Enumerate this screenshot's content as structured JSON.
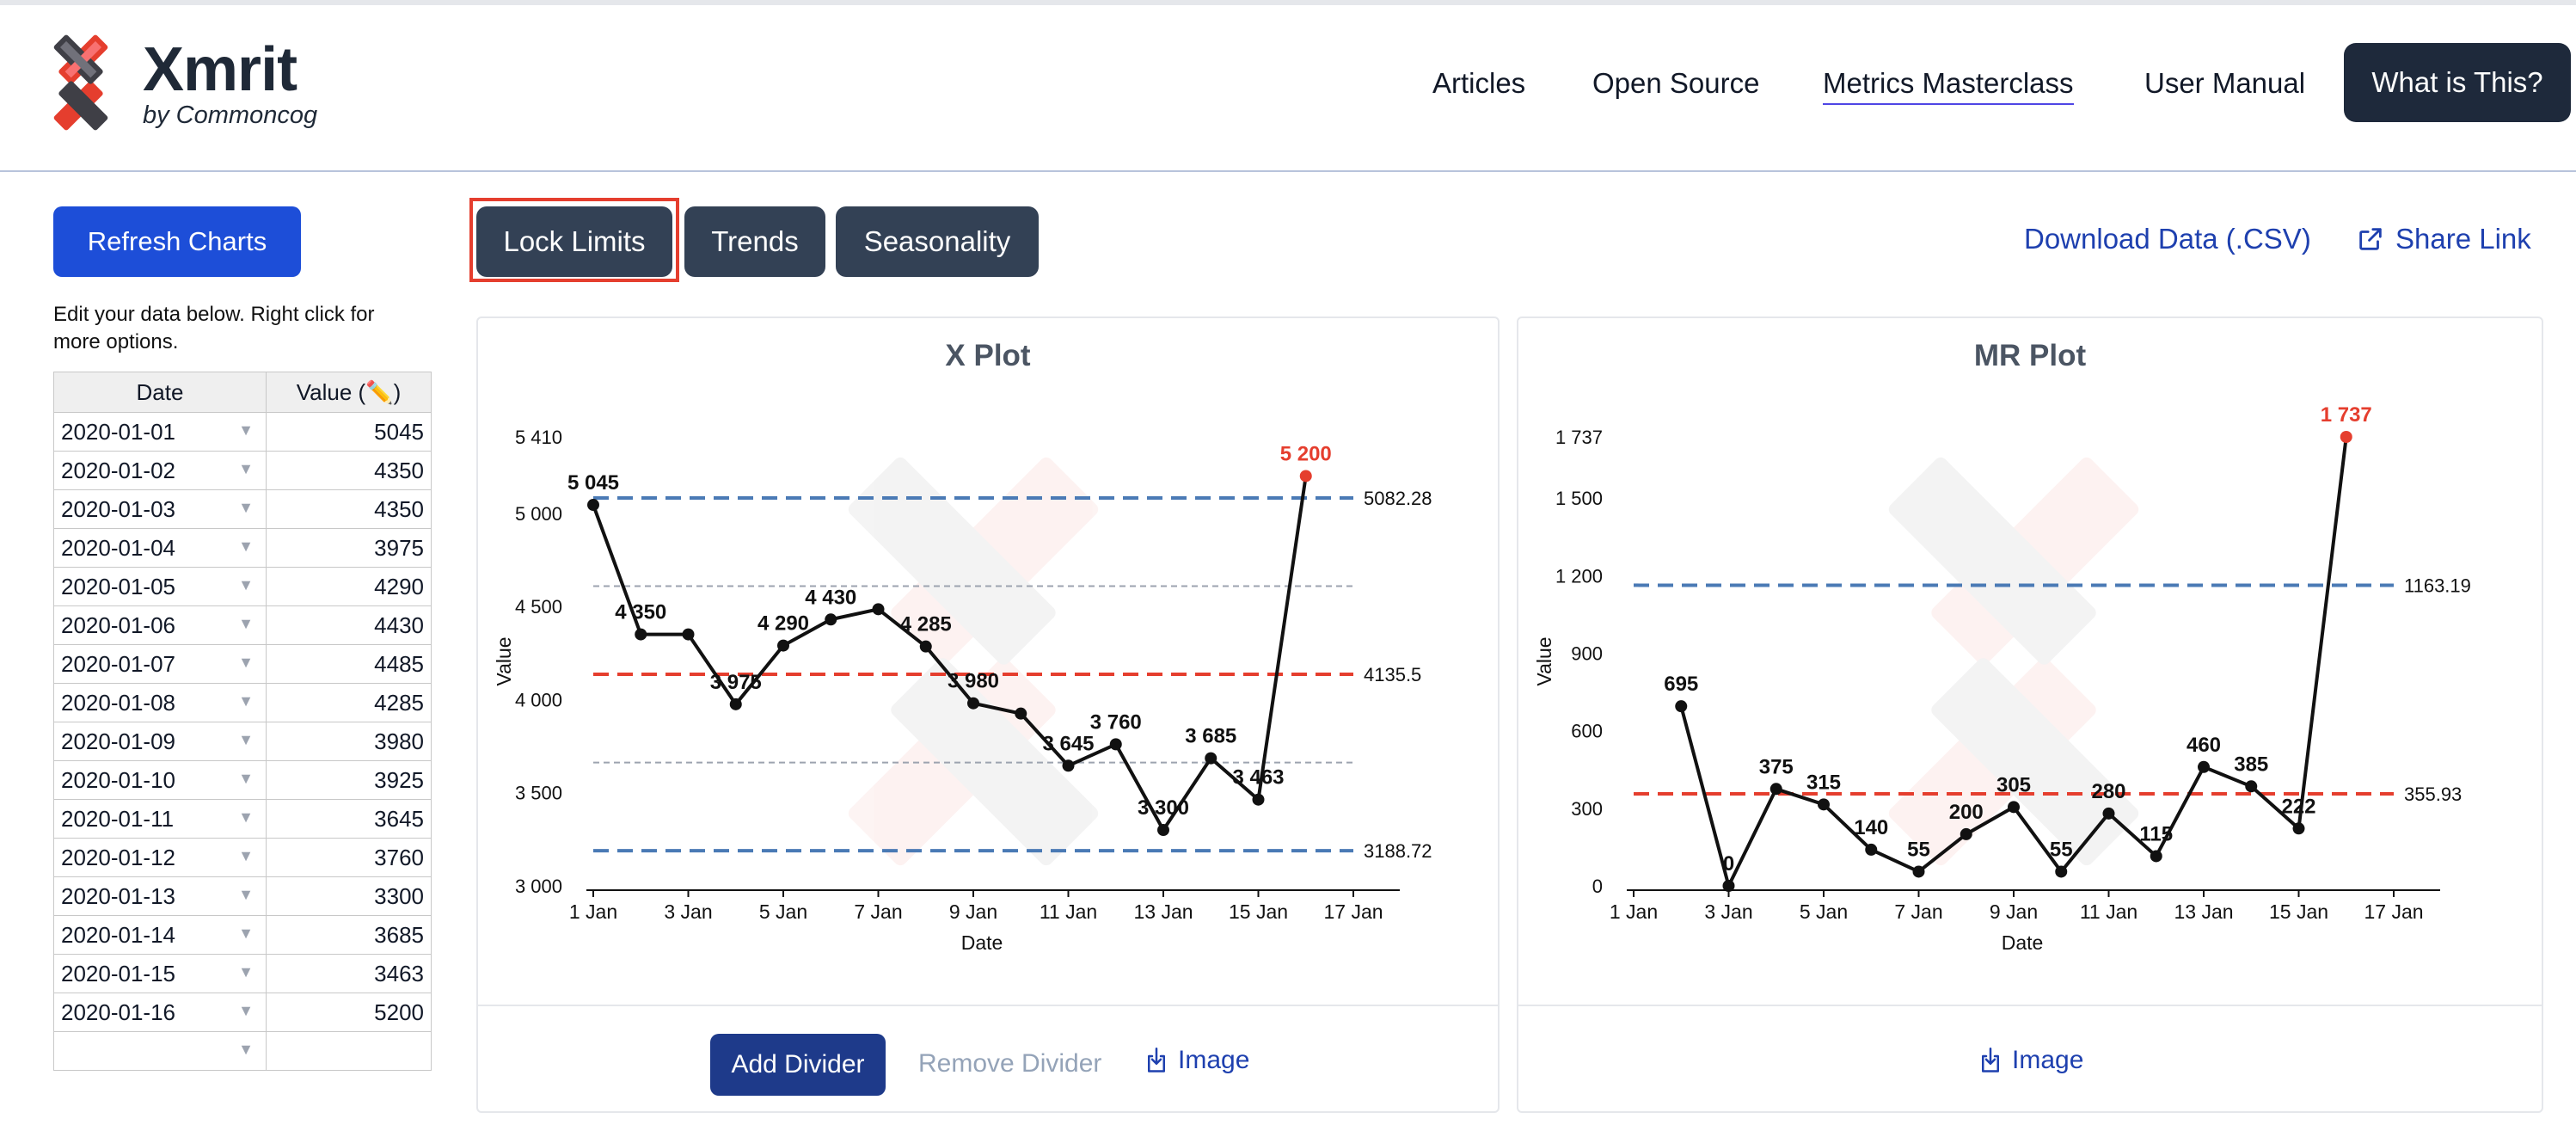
{
  "header": {
    "brand": "Xmrit",
    "brand_sub": "by Commoncog",
    "nav": [
      "Articles",
      "Open Source",
      "Metrics Masterclass",
      "User Manual"
    ],
    "cta": "What is This?"
  },
  "sidebar": {
    "refresh_label": "Refresh Charts",
    "note": "Edit your data below. Right click for more options.",
    "columns": [
      "Date",
      "Value (✏️)"
    ],
    "rows": [
      [
        "2020-01-01",
        "5045"
      ],
      [
        "2020-01-02",
        "4350"
      ],
      [
        "2020-01-03",
        "4350"
      ],
      [
        "2020-01-04",
        "3975"
      ],
      [
        "2020-01-05",
        "4290"
      ],
      [
        "2020-01-06",
        "4430"
      ],
      [
        "2020-01-07",
        "4485"
      ],
      [
        "2020-01-08",
        "4285"
      ],
      [
        "2020-01-09",
        "3980"
      ],
      [
        "2020-01-10",
        "3925"
      ],
      [
        "2020-01-11",
        "3645"
      ],
      [
        "2020-01-12",
        "3760"
      ],
      [
        "2020-01-13",
        "3300"
      ],
      [
        "2020-01-14",
        "3685"
      ],
      [
        "2020-01-15",
        "3463"
      ],
      [
        "2020-01-16",
        "5200"
      ]
    ]
  },
  "toolbar": {
    "lock_limits": "Lock Limits",
    "trends": "Trends",
    "seasonality": "Seasonality",
    "download": "Download Data (.CSV)",
    "share": "Share Link"
  },
  "x_panel": {
    "add_divider": "Add Divider",
    "remove_divider": "Remove Divider",
    "image": "Image"
  },
  "mr_panel": {
    "image": "Image"
  },
  "colors": {
    "primary": "#1d4ed8",
    "dark": "#334155",
    "limit_red": "#e53e2e",
    "limit_blue": "#4a7ab5"
  },
  "chart_data": [
    {
      "type": "line",
      "title": "X Plot",
      "xlabel": "Date",
      "ylabel": "Value",
      "x": [
        "2020-01-01",
        "2020-01-02",
        "2020-01-03",
        "2020-01-04",
        "2020-01-05",
        "2020-01-06",
        "2020-01-07",
        "2020-01-08",
        "2020-01-09",
        "2020-01-10",
        "2020-01-11",
        "2020-01-12",
        "2020-01-13",
        "2020-01-14",
        "2020-01-15",
        "2020-01-16"
      ],
      "values": [
        5045,
        4350,
        4350,
        3975,
        4290,
        4430,
        4485,
        4285,
        3980,
        3925,
        3645,
        3760,
        3300,
        3685,
        3463,
        5200
      ],
      "point_labels": [
        "5 045",
        "4 350",
        "",
        "3 975",
        "4 290",
        "4 430",
        "",
        "4 285",
        "3 980",
        "",
        "3 645",
        "3 760",
        "3 300",
        "3 685",
        "3 463",
        "5 200"
      ],
      "highlight_index": 15,
      "ylim": [
        3000,
        5410
      ],
      "yticks": [
        "3 000",
        "3 500",
        "4 000",
        "4 500",
        "5 000",
        "5 410"
      ],
      "ytick_values": [
        3000,
        3500,
        4000,
        4500,
        5000,
        5410
      ],
      "xticks": [
        "1 Jan",
        "3 Jan",
        "5 Jan",
        "7 Jan",
        "9 Jan",
        "11 Jan",
        "13 Jan",
        "15 Jan",
        "17 Jan"
      ],
      "limits": {
        "upper": 5082.28,
        "center": 4135.5,
        "lower": 3188.72,
        "upper_label": "5082.28",
        "center_label": "4135.5",
        "lower_label": "3188.72"
      },
      "quartiles": [
        4608.89,
        3662.11
      ]
    },
    {
      "type": "line",
      "title": "MR Plot",
      "xlabel": "Date",
      "ylabel": "Value",
      "x": [
        "2020-01-02",
        "2020-01-03",
        "2020-01-04",
        "2020-01-05",
        "2020-01-06",
        "2020-01-07",
        "2020-01-08",
        "2020-01-09",
        "2020-01-10",
        "2020-01-11",
        "2020-01-12",
        "2020-01-13",
        "2020-01-14",
        "2020-01-15",
        "2020-01-16"
      ],
      "values": [
        695,
        0,
        375,
        315,
        140,
        55,
        200,
        305,
        55,
        280,
        115,
        460,
        385,
        222,
        1737
      ],
      "point_labels": [
        "695",
        "0",
        "375",
        "315",
        "140",
        "55",
        "200",
        "305",
        "55",
        "280",
        "115",
        "460",
        "385",
        "222",
        "1 737"
      ],
      "highlight_index": 14,
      "ylim": [
        0,
        1737
      ],
      "yticks": [
        "0",
        "300",
        "600",
        "900",
        "1 200",
        "1 500",
        "1 737"
      ],
      "ytick_values": [
        0,
        300,
        600,
        900,
        1200,
        1500,
        1737
      ],
      "xticks": [
        "1 Jan",
        "3 Jan",
        "5 Jan",
        "7 Jan",
        "9 Jan",
        "11 Jan",
        "13 Jan",
        "15 Jan",
        "17 Jan"
      ],
      "limits": {
        "upper": 1163.19,
        "center": 355.93,
        "upper_label": "1163.19",
        "center_label": "355.93"
      }
    }
  ]
}
